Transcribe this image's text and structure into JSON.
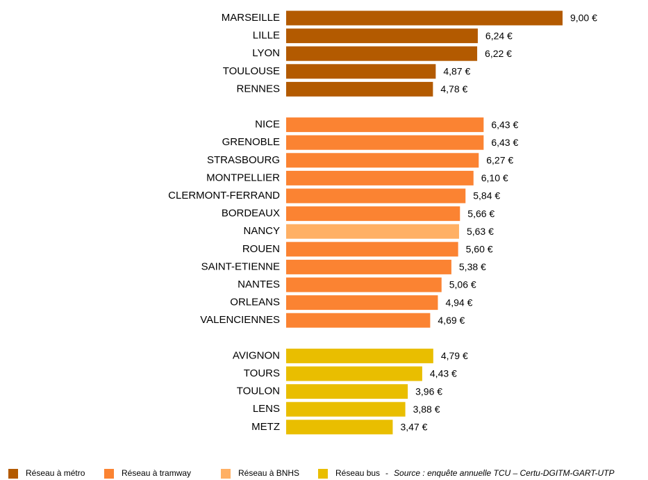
{
  "chart_data": {
    "type": "hbar",
    "categories": [
      "MARSEILLE",
      "LILLE",
      "LYON",
      "TOULOUSE",
      "RENNES",
      null,
      "NICE",
      "GRENOBLE",
      "STRASBOURG",
      "MONTPELLIER",
      "CLERMONT-FERRAND",
      "BORDEAUX",
      "NANCY",
      "ROUEN",
      "SAINT-ETIENNE",
      "NANTES",
      "ORLEANS",
      "VALENCIENNES",
      null,
      "AVIGNON",
      "TOURS",
      "TOULON",
      "LENS",
      "METZ"
    ],
    "series": [
      {
        "name": "Réseau à métro",
        "color": "#b35a00",
        "values": [
          9.0,
          6.24,
          6.22,
          4.87,
          4.78,
          null,
          null,
          null,
          null,
          null,
          null,
          null,
          null,
          null,
          null,
          null,
          null,
          null,
          null,
          null,
          null,
          null,
          null,
          null
        ],
        "value_labels": [
          "9,00 €",
          "6,24 €",
          "6,22 €",
          "4,87 €",
          "4,78 €",
          null,
          null,
          null,
          null,
          null,
          null,
          null,
          null,
          null,
          null,
          null,
          null,
          null,
          null,
          null,
          null,
          null,
          null,
          null
        ]
      },
      {
        "name": "Réseau à tramway",
        "color": "#fb8332",
        "values": [
          null,
          null,
          null,
          null,
          null,
          null,
          6.43,
          6.43,
          6.27,
          6.1,
          5.84,
          5.66,
          null,
          5.6,
          5.38,
          5.06,
          4.94,
          4.69,
          null,
          null,
          null,
          null,
          null,
          null
        ],
        "value_labels": [
          null,
          null,
          null,
          null,
          null,
          null,
          "6,43 €",
          "6,43 €",
          "6,27 €",
          "6,10 €",
          "5,84 €",
          "5,66 €",
          null,
          "5,60 €",
          "5,38 €",
          "5,06 €",
          "4,94 €",
          "4,69 €",
          null,
          null,
          null,
          null,
          null,
          null
        ]
      },
      {
        "name": "Réseau à BNHS",
        "color": "#ffb064",
        "values": [
          null,
          null,
          null,
          null,
          null,
          null,
          null,
          null,
          null,
          null,
          null,
          null,
          5.63,
          null,
          null,
          null,
          null,
          null,
          null,
          null,
          null,
          null,
          null,
          null
        ],
        "value_labels": [
          null,
          null,
          null,
          null,
          null,
          null,
          null,
          null,
          null,
          null,
          null,
          null,
          "5,63 €",
          null,
          null,
          null,
          null,
          null,
          null,
          null,
          null,
          null,
          null,
          null
        ]
      },
      {
        "name": "Réseau bus",
        "color": "#e9be00",
        "values": [
          null,
          null,
          null,
          null,
          null,
          null,
          null,
          null,
          null,
          null,
          null,
          null,
          null,
          null,
          null,
          null,
          null,
          null,
          null,
          4.79,
          4.43,
          3.96,
          3.88,
          3.47
        ],
        "value_labels": [
          null,
          null,
          null,
          null,
          null,
          null,
          null,
          null,
          null,
          null,
          null,
          null,
          null,
          null,
          null,
          null,
          null,
          null,
          null,
          "4,79 €",
          "4,43 €",
          "3,96 €",
          "3,88 €",
          "3,47 €"
        ]
      }
    ],
    "source_separator": "-",
    "source": "Source : enquête annuelle TCU – Certu-DGITM-GART-UTP"
  }
}
